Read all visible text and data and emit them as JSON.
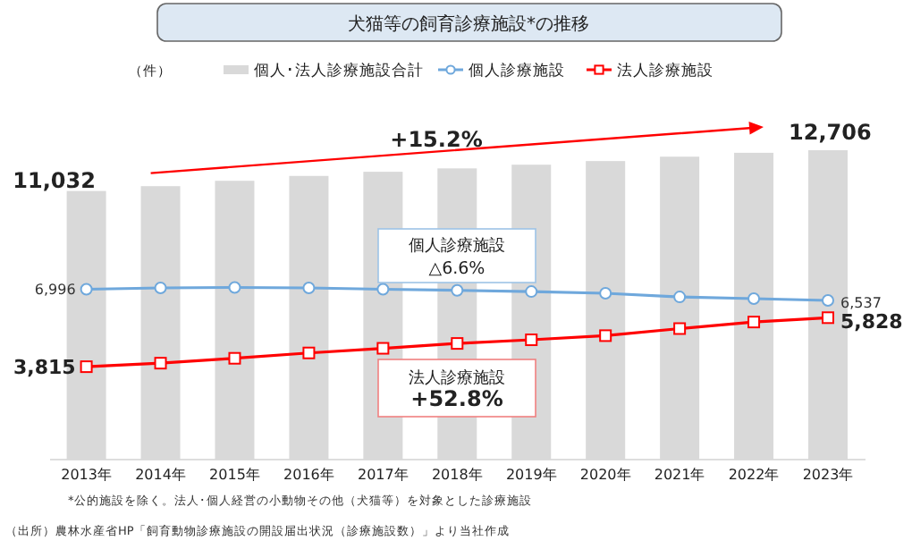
{
  "chart_data": {
    "type": "bar",
    "title": "犬猫等の飼育診療施設*の推移",
    "categories": [
      "2013年",
      "2014年",
      "2015年",
      "2016年",
      "2017年",
      "2018年",
      "2019年",
      "2020年",
      "2021年",
      "2022年",
      "2023年"
    ],
    "series": [
      {
        "name": "個人･法人診療施設合計",
        "color": "#d9d9d9",
        "values": [
          11032,
          11230,
          11450,
          11650,
          11820,
          11960,
          12110,
          12260,
          12440,
          12600,
          12706
        ],
        "value_labels": [
          "11,032",
          null,
          null,
          null,
          null,
          null,
          null,
          null,
          null,
          null,
          "12,706"
        ]
      },
      {
        "name": "個人診療施設",
        "type": "line",
        "color": "#6fa8dc",
        "marker": "circle",
        "values": [
          6996,
          7050,
          7070,
          7050,
          6996,
          6950,
          6900,
          6830,
          6680,
          6610,
          6537
        ],
        "value_labels": [
          "6,996",
          null,
          null,
          null,
          null,
          null,
          null,
          null,
          null,
          null,
          "6,537"
        ]
      },
      {
        "name": "法人診療施設",
        "type": "line",
        "color": "#ff0000",
        "marker": "square",
        "values": [
          3815,
          3960,
          4160,
          4380,
          4570,
          4770,
          4920,
          5090,
          5380,
          5650,
          5828
        ],
        "value_labels": [
          "3,815",
          null,
          null,
          null,
          null,
          null,
          null,
          null,
          null,
          null,
          "5,828"
        ]
      }
    ],
    "legend": "top",
    "annotations": [
      "（件）",
      "+15.2%",
      "個人診療施設\n△6.6%",
      "法人診療施設\n+52.8%",
      "*公的施設を除く。法人･個人経営の小動物その他（犬猫等）を対象とした診療施設",
      "（出所）農林水産省HP「飼育動物診療施設の開設届出状況（診療施設数）」より当社作成"
    ]
  }
}
